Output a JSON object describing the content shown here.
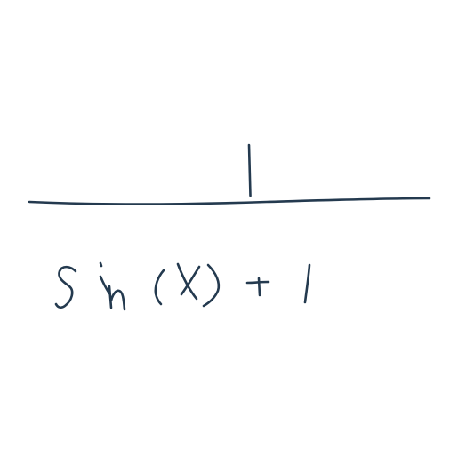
{
  "expression": {
    "numerator": "1",
    "denominator": "sin (x) + 1"
  },
  "colors": {
    "ink": "#243a4f",
    "background": "#ffffff"
  }
}
